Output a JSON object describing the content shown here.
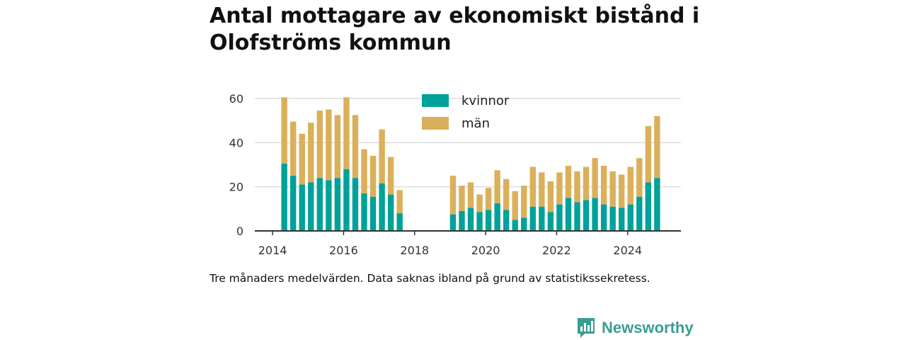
{
  "chart_data": {
    "type": "bar",
    "stacked": true,
    "title": "Antal mottagare av ekonomiskt bistånd i Olofströms kommun",
    "caption": "Tre månaders medelvärden. Data saknas ibland på grund av statistikssekretess.",
    "xlim": [
      2013.5,
      2025.5
    ],
    "ylim": [
      0,
      60
    ],
    "x_ticks": [
      2014,
      2016,
      2018,
      2020,
      2022,
      2024
    ],
    "y_ticks": [
      0,
      20,
      40,
      60
    ],
    "grid": true,
    "legend_position": "top-center",
    "x": [
      2014.33,
      2014.58,
      2014.83,
      2015.08,
      2015.33,
      2015.58,
      2015.83,
      2016.08,
      2016.33,
      2016.58,
      2016.83,
      2017.08,
      2017.33,
      2017.58,
      2019.08,
      2019.33,
      2019.58,
      2019.83,
      2020.08,
      2020.33,
      2020.58,
      2020.83,
      2021.08,
      2021.33,
      2021.58,
      2021.83,
      2022.08,
      2022.33,
      2022.58,
      2022.83,
      2023.08,
      2023.33,
      2023.58,
      2023.83,
      2024.08,
      2024.33,
      2024.58,
      2024.83
    ],
    "series": [
      {
        "name": "kvinnor",
        "color": "#00a19a",
        "values": [
          30.5,
          25,
          21,
          22,
          24,
          23,
          24,
          28,
          24,
          17,
          15.5,
          21.5,
          16.5,
          8,
          7.5,
          9,
          10.5,
          8.5,
          9.5,
          12.5,
          9.5,
          5,
          6,
          11,
          11,
          8.5,
          12,
          15,
          13,
          14,
          15,
          12,
          11,
          10.5,
          12,
          15.5,
          22,
          24
        ]
      },
      {
        "name": "män",
        "color": "#dbb05b",
        "values": [
          30,
          24.5,
          23,
          27,
          30.5,
          32,
          28.5,
          32.5,
          28.5,
          20,
          18.5,
          24.5,
          17,
          10.5,
          17.5,
          11.5,
          11.5,
          8,
          10,
          15,
          14,
          13,
          14.5,
          18,
          15.5,
          14,
          14.5,
          14.5,
          14,
          15,
          18,
          17.5,
          16,
          15,
          17,
          17.5,
          25.5,
          28
        ]
      }
    ]
  },
  "brand": {
    "name": "Newsworthy",
    "icon": "bar-chart-speech-bubble-icon"
  }
}
